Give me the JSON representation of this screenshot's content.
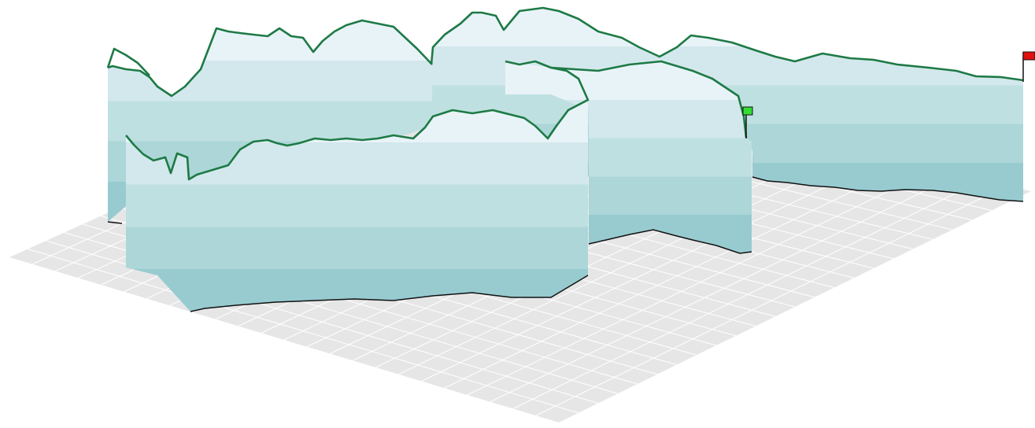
{
  "chart_data": {
    "type": "area",
    "subtype": "3d-elevation-curtain",
    "title": "",
    "xlabel": "",
    "ylabel": "",
    "grid": true,
    "legend": "none",
    "band_count": 5,
    "colors": {
      "ground": "#e6e6e6",
      "grid": "#ffffff",
      "bands": [
        "#e8f3f8",
        "#d3e8ec",
        "#bfe0e1",
        "#acd6d8",
        "#97cbd0"
      ],
      "profile": "#1d7a45",
      "base": "#111111",
      "start_flag": "#33dd33",
      "end_flag": "#e01010"
    },
    "markers": [
      {
        "name": "start",
        "color": "#33dd33",
        "shape": "flag"
      },
      {
        "name": "end",
        "color": "#e01010",
        "shape": "flag"
      }
    ],
    "track": [
      {
        "id": "far-east",
        "wall": [
          [
            1300,
            102
          ],
          [
            1272,
            98
          ],
          [
            1240,
            97
          ],
          [
            1215,
            90
          ],
          [
            1180,
            86
          ],
          [
            1140,
            82
          ],
          [
            1110,
            76
          ],
          [
            1080,
            74
          ],
          [
            1045,
            68
          ],
          [
            1010,
            78
          ],
          [
            985,
            72
          ],
          [
            960,
            64
          ],
          [
            930,
            54
          ],
          [
            900,
            48
          ],
          [
            878,
            45
          ],
          [
            860,
            60
          ],
          [
            838,
            72
          ],
          [
            812,
            60
          ],
          [
            790,
            48
          ],
          [
            760,
            40
          ],
          [
            735,
            24
          ],
          [
            710,
            14
          ],
          [
            690,
            10
          ],
          [
            660,
            14
          ],
          [
            640,
            38
          ],
          [
            630,
            20
          ],
          [
            612,
            16
          ],
          [
            600,
            16
          ],
          [
            585,
            30
          ],
          [
            565,
            44
          ],
          [
            550,
            60
          ],
          [
            548,
            82
          ]
        ],
        "base": [
          [
            1300,
            256
          ],
          [
            1270,
            254
          ],
          [
            1245,
            250
          ],
          [
            1215,
            245
          ],
          [
            1185,
            242
          ],
          [
            1150,
            241
          ],
          [
            1120,
            243
          ],
          [
            1090,
            242
          ],
          [
            1060,
            238
          ],
          [
            1030,
            236
          ],
          [
            1000,
            232
          ],
          [
            975,
            230
          ],
          [
            956,
            225
          ]
        ],
        "depth": 1
      },
      {
        "id": "far-west",
        "wall": [
          [
            549,
            82
          ],
          [
            530,
            62
          ],
          [
            515,
            48
          ],
          [
            500,
            34
          ],
          [
            480,
            30
          ],
          [
            460,
            26
          ],
          [
            440,
            32
          ],
          [
            425,
            40
          ],
          [
            410,
            52
          ],
          [
            398,
            66
          ],
          [
            385,
            48
          ],
          [
            370,
            46
          ],
          [
            355,
            36
          ],
          [
            340,
            46
          ],
          [
            322,
            44
          ],
          [
            305,
            42
          ],
          [
            290,
            40
          ],
          [
            275,
            36
          ],
          [
            265,
            62
          ],
          [
            255,
            88
          ],
          [
            235,
            110
          ],
          [
            218,
            122
          ],
          [
            200,
            110
          ],
          [
            190,
            98
          ],
          [
            178,
            90
          ],
          [
            160,
            88
          ],
          [
            143,
            84
          ],
          [
            137,
            86
          ],
          [
            145,
            62
          ],
          [
            160,
            70
          ],
          [
            175,
            80
          ],
          [
            190,
            96
          ]
        ],
        "base": [
          [
            549,
            160
          ],
          [
            137,
            282
          ],
          [
            155,
            284
          ]
        ],
        "depth": 2
      },
      {
        "id": "mid-loop",
        "wall": [
          [
            642,
            78
          ],
          [
            660,
            82
          ],
          [
            680,
            78
          ],
          [
            700,
            86
          ],
          [
            720,
            90
          ],
          [
            735,
            100
          ],
          [
            747,
            127
          ],
          [
            722,
            140
          ],
          [
            707,
            160
          ],
          [
            696,
            176
          ],
          [
            680,
            160
          ],
          [
            666,
            150
          ],
          [
            650,
            146
          ],
          [
            626,
            140
          ],
          [
            600,
            144
          ],
          [
            575,
            140
          ],
          [
            550,
            148
          ],
          [
            540,
            162
          ],
          [
            525,
            176
          ],
          [
            500,
            172
          ],
          [
            480,
            176
          ],
          [
            460,
            178
          ],
          [
            440,
            176
          ],
          [
            420,
            178
          ],
          [
            400,
            176
          ],
          [
            380,
            182
          ],
          [
            365,
            185
          ],
          [
            352,
            182
          ],
          [
            340,
            178
          ],
          [
            322,
            180
          ],
          [
            305,
            190
          ],
          [
            290,
            210
          ],
          [
            270,
            216
          ],
          [
            250,
            222
          ],
          [
            240,
            228
          ],
          [
            238,
            200
          ],
          [
            225,
            195
          ],
          [
            217,
            220
          ],
          [
            210,
            200
          ],
          [
            195,
            204
          ],
          [
            182,
            196
          ],
          [
            170,
            184
          ],
          [
            160,
            172
          ]
        ],
        "base": [
          [
            747,
            350
          ],
          [
            700,
            378
          ],
          [
            650,
            378
          ],
          [
            600,
            372
          ],
          [
            550,
            376
          ],
          [
            500,
            382
          ],
          [
            450,
            380
          ],
          [
            400,
            382
          ],
          [
            350,
            384
          ],
          [
            300,
            388
          ],
          [
            260,
            392
          ],
          [
            242,
            396
          ]
        ],
        "depth": 3
      },
      {
        "id": "near-east",
        "wall": [
          [
            642,
            78
          ],
          [
            700,
            86
          ],
          [
            760,
            90
          ],
          [
            800,
            82
          ],
          [
            840,
            78
          ],
          [
            880,
            90
          ],
          [
            905,
            100
          ],
          [
            920,
            110
          ],
          [
            938,
            122
          ],
          [
            945,
            148
          ],
          [
            948,
            175
          ]
        ],
        "base": [
          [
            955,
            320
          ],
          [
            940,
            322
          ],
          [
            910,
            312
          ],
          [
            880,
            305
          ],
          [
            860,
            300
          ],
          [
            830,
            292
          ],
          [
            800,
            298
          ],
          [
            770,
            305
          ],
          [
            748,
            310
          ]
        ],
        "depth": 3
      }
    ]
  }
}
